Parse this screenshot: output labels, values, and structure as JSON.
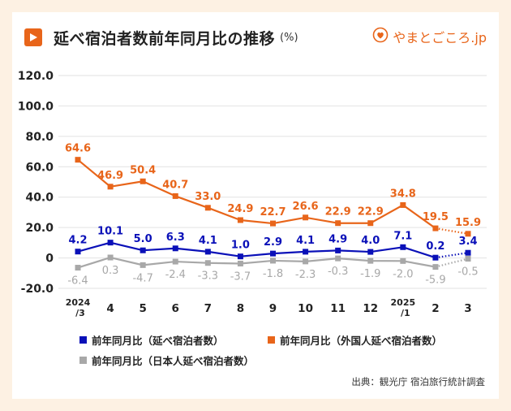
{
  "header": {
    "title": "延べ宿泊者数前年同月比の推移",
    "unit": "(%)",
    "brand": "やまとごころ.jp",
    "brand_icon": "heart-logo-icon"
  },
  "colors": {
    "total": "#0a10b8",
    "foreign": "#e8651a",
    "japanese": "#a8a8a8",
    "grid": "#e2e2e2",
    "background": "#fdf1e3"
  },
  "source": "出典：観光庁 宿泊旅行統計調査",
  "chart_data": {
    "type": "line",
    "title": "延べ宿泊者数前年同月比の推移",
    "ylabel": "(%)",
    "ylim": [
      -20,
      120
    ],
    "yticks": [
      "120.0",
      "100.0",
      "80.0",
      "60.0",
      "40.0",
      "20.0",
      "0",
      "-20.0"
    ],
    "ytick_values": [
      120,
      100,
      80,
      60,
      40,
      20,
      0,
      -20
    ],
    "grid": true,
    "categories": [
      {
        "top": "2024",
        "bottom": "/3"
      },
      {
        "top": "4",
        "bottom": ""
      },
      {
        "top": "5",
        "bottom": ""
      },
      {
        "top": "6",
        "bottom": ""
      },
      {
        "top": "7",
        "bottom": ""
      },
      {
        "top": "8",
        "bottom": ""
      },
      {
        "top": "9",
        "bottom": ""
      },
      {
        "top": "10",
        "bottom": ""
      },
      {
        "top": "11",
        "bottom": ""
      },
      {
        "top": "12",
        "bottom": ""
      },
      {
        "top": "2025",
        "bottom": "/1"
      },
      {
        "top": "2",
        "bottom": ""
      },
      {
        "top": "3",
        "bottom": ""
      }
    ],
    "series": [
      {
        "key": "foreign",
        "name": "前年同月比（外国人延べ宿泊者数）",
        "values": [
          64.6,
          46.9,
          50.4,
          40.7,
          33.0,
          24.9,
          22.7,
          26.6,
          22.9,
          22.9,
          34.8,
          19.5,
          15.9
        ],
        "labels": [
          "64.6",
          "46.9",
          "50.4",
          "40.7",
          "33.0",
          "24.9",
          "22.7",
          "26.6",
          "22.9",
          "22.9",
          "34.8",
          "19.5",
          "15.9"
        ],
        "label_pos": "above",
        "dotted_last": true
      },
      {
        "key": "total",
        "name": "前年同月比（延べ宿泊者数）",
        "values": [
          4.2,
          10.1,
          5.0,
          6.3,
          4.1,
          1.0,
          2.9,
          4.1,
          4.9,
          4.0,
          7.1,
          0.2,
          3.4
        ],
        "labels": [
          "4.2",
          "10.1",
          "5.0",
          "6.3",
          "4.1",
          "1.0",
          "2.9",
          "4.1",
          "4.9",
          "4.0",
          "7.1",
          "0.2",
          "3.4"
        ],
        "label_pos": "above",
        "dotted_last": true
      },
      {
        "key": "japanese",
        "name": "前年同月比（日本人延べ宿泊者数）",
        "values": [
          -6.4,
          0.3,
          -4.7,
          -2.4,
          -3.3,
          -3.7,
          -1.8,
          -2.3,
          -0.3,
          -1.9,
          -2.0,
          -5.9,
          -0.5
        ],
        "labels": [
          "-6.4",
          "0.3",
          "-4.7",
          "-2.4",
          "-3.3",
          "-3.7",
          "-1.8",
          "-2.3",
          "-0.3",
          "-1.9",
          "-2.0",
          "-5.9",
          "-0.5"
        ],
        "label_pos": "below",
        "dotted_last": true
      }
    ],
    "legend": [
      {
        "key": "total",
        "label": "前年同月比（延べ宿泊者数）"
      },
      {
        "key": "foreign",
        "label": "前年同月比（外国人延べ宿泊者数）"
      },
      {
        "key": "japanese",
        "label": "前年同月比（日本人延べ宿泊者数）"
      }
    ]
  }
}
